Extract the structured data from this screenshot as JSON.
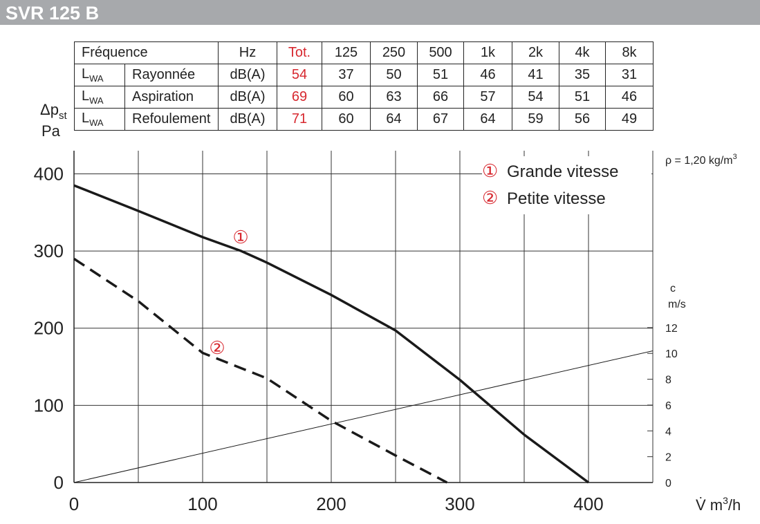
{
  "header": {
    "title": "SVR 125 B"
  },
  "table": {
    "header": [
      "Fréquence",
      "Hz",
      "Tot.",
      "125",
      "250",
      "500",
      "1k",
      "2k",
      "4k",
      "8k"
    ],
    "rows": [
      {
        "lwa": "L",
        "lwa_sub": "WA",
        "label": "Rayonnée",
        "unit": "dB(A)",
        "tot": 54,
        "values": [
          37,
          50,
          51,
          46,
          41,
          35,
          31
        ]
      },
      {
        "lwa": "L",
        "lwa_sub": "WA",
        "label": "Aspiration",
        "unit": "dB(A)",
        "tot": 69,
        "values": [
          60,
          63,
          66,
          57,
          54,
          51,
          46
        ]
      },
      {
        "lwa": "L",
        "lwa_sub": "WA",
        "label": "Refoulement",
        "unit": "dB(A)",
        "tot": 71,
        "values": [
          60,
          64,
          67,
          64,
          59,
          56,
          49
        ]
      }
    ]
  },
  "chart_data": {
    "type": "line",
    "y_label": [
      "Δp",
      "st"
    ],
    "y_unit": "Pa",
    "y2_label": [
      "c",
      "m/s"
    ],
    "x_label": [
      "V̇ m",
      "3",
      "/h"
    ],
    "density": [
      "ρ = 1,20 kg/m",
      "3"
    ],
    "xlim": [
      0,
      450
    ],
    "ylim": [
      0,
      430
    ],
    "y2lim": [
      0,
      25.7
    ],
    "xticks": [
      0,
      {
        "value": 50,
        "label": null
      },
      100,
      {
        "value": 150,
        "label": null
      },
      200,
      {
        "value": 250,
        "label": null
      },
      300,
      {
        "value": 350,
        "label": null
      },
      400,
      {
        "value": 450,
        "label": null
      }
    ],
    "yticks": [
      0,
      100,
      200,
      300,
      400
    ],
    "y2ticks": [
      0,
      2,
      4,
      6,
      8,
      10,
      12
    ],
    "grid": true,
    "legend": "upper right",
    "series": [
      {
        "name": "Grande vitesse",
        "marker": "①",
        "marker_color": "#d7282f",
        "color": "#1a1a1a",
        "dash": false,
        "x": [
          0,
          50,
          100,
          130,
          150,
          200,
          250,
          300,
          350,
          400
        ],
        "values": [
          385,
          352,
          318,
          300,
          285,
          243,
          197,
          133,
          62,
          0
        ]
      },
      {
        "name": "Petite vitesse",
        "marker": "②",
        "marker_color": "#d7282f",
        "color": "#1a1a1a",
        "dash": true,
        "x": [
          0,
          50,
          100,
          150,
          200,
          250,
          290
        ],
        "values": [
          290,
          235,
          168,
          135,
          80,
          35,
          0
        ]
      },
      {
        "axis": "y2",
        "color": "#1a1a1a",
        "dash": false,
        "x": [
          0,
          450
        ],
        "values": [
          0,
          10.2
        ]
      }
    ]
  }
}
